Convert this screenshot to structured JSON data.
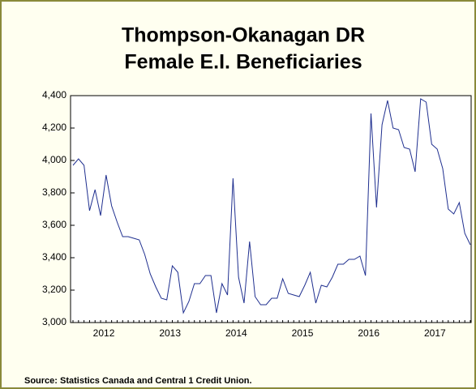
{
  "chart_data": {
    "type": "line",
    "title": [
      "Thompson-Okanagan DR",
      "Female E.I. Beneficiaries"
    ],
    "source": "Source: Statistics Canada and Central 1 Credit Union.",
    "categories": [
      null,
      null,
      null,
      null,
      null,
      "2012",
      null,
      null,
      null,
      null,
      null,
      null,
      null,
      null,
      null,
      null,
      null,
      "2013",
      null,
      null,
      null,
      null,
      null,
      null,
      null,
      null,
      null,
      null,
      null,
      "2014",
      null,
      null,
      null,
      null,
      null,
      null,
      null,
      null,
      null,
      null,
      null,
      "2015",
      null,
      null,
      null,
      null,
      null,
      null,
      null,
      null,
      null,
      null,
      null,
      "2016",
      null,
      null,
      null,
      null,
      null,
      null,
      null,
      null,
      null,
      null,
      null,
      "2017",
      null,
      null,
      null,
      null,
      null,
      null,
      null
    ],
    "series": [
      {
        "name": "Female E.I. Beneficiaries",
        "color": "#1f2f8f",
        "values": [
          3970,
          4010,
          3970,
          3690,
          3820,
          3660,
          3910,
          3720,
          3620,
          3530,
          3530,
          3520,
          3510,
          3420,
          3300,
          3220,
          3150,
          3140,
          3350,
          3310,
          3060,
          3130,
          3240,
          3240,
          3290,
          3290,
          3060,
          3240,
          3170,
          3890,
          3280,
          3120,
          3500,
          3160,
          3110,
          3110,
          3150,
          3150,
          3270,
          3180,
          3170,
          3160,
          3230,
          3310,
          3120,
          3230,
          3220,
          3280,
          3360,
          3360,
          3390,
          3390,
          3410,
          3290,
          4290,
          3710,
          4220,
          4370,
          4200,
          4190,
          4080,
          4070,
          3930,
          4380,
          4360,
          4100,
          4070,
          3950,
          3700,
          3670,
          3740,
          3550,
          3480
        ]
      }
    ],
    "ylim": [
      3000,
      4400
    ],
    "yticks": [
      {
        "value": 3000,
        "label": "3,000"
      },
      {
        "value": 3200,
        "label": "3,200"
      },
      {
        "value": 3400,
        "label": "3,400"
      },
      {
        "value": 3600,
        "label": "3,600"
      },
      {
        "value": 3800,
        "label": "3,800"
      },
      {
        "value": 4000,
        "label": "4,000"
      },
      {
        "value": 4200,
        "label": "4,200"
      },
      {
        "value": 4400,
        "label": "4,400"
      }
    ],
    "grid": false
  }
}
